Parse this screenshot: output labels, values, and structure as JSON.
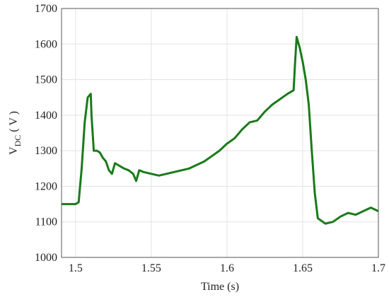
{
  "chart_data": {
    "type": "line",
    "x_label": "Time (s)",
    "y_label": "V",
    "y_label_sub": "DC",
    "y_label_unit": "( V )",
    "xlim": [
      1.4907,
      1.7
    ],
    "ylim": [
      1000,
      1700
    ],
    "xticks": [
      {
        "value": 1.5,
        "label": "1.5"
      },
      1.55,
      1.6,
      1.65,
      1.7
    ],
    "yticks": [
      1000,
      1100,
      1200,
      1300,
      1400,
      1500,
      1600,
      1700
    ],
    "grid": true,
    "x": [
      1.4907,
      1.495,
      1.5,
      1.502,
      1.504,
      1.506,
      1.508,
      1.51,
      1.5105,
      1.512,
      1.514,
      1.516,
      1.518,
      1.52,
      1.522,
      1.524,
      1.526,
      1.528,
      1.53,
      1.532,
      1.535,
      1.538,
      1.54,
      1.542,
      1.545,
      1.55,
      1.555,
      1.56,
      1.565,
      1.57,
      1.575,
      1.58,
      1.585,
      1.59,
      1.595,
      1.6,
      1.605,
      1.61,
      1.615,
      1.62,
      1.625,
      1.63,
      1.635,
      1.64,
      1.644,
      1.645,
      1.646,
      1.648,
      1.65,
      1.652,
      1.654,
      1.656,
      1.658,
      1.66,
      1.665,
      1.67,
      1.675,
      1.68,
      1.685,
      1.69,
      1.695,
      1.7
    ],
    "series": [
      {
        "color": "#1a7a1a",
        "values": [
          1150,
          1150,
          1150,
          1155,
          1250,
          1380,
          1450,
          1460,
          1400,
          1300,
          1300,
          1295,
          1280,
          1270,
          1245,
          1235,
          1265,
          1260,
          1255,
          1250,
          1245,
          1235,
          1215,
          1245,
          1240,
          1235,
          1230,
          1235,
          1240,
          1245,
          1250,
          1260,
          1270,
          1285,
          1300,
          1320,
          1335,
          1360,
          1380,
          1385,
          1410,
          1430,
          1445,
          1460,
          1470,
          1550,
          1620,
          1590,
          1550,
          1500,
          1430,
          1300,
          1180,
          1110,
          1095,
          1100,
          1115,
          1125,
          1120,
          1130,
          1140,
          1130
        ]
      }
    ]
  }
}
